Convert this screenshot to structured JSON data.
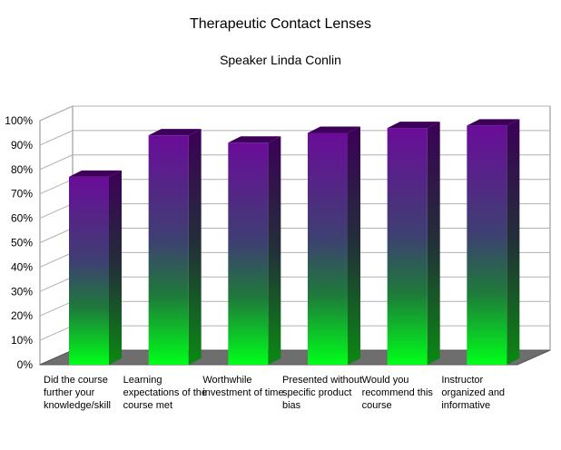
{
  "chart_data": {
    "type": "bar",
    "title": "Therapeutic Contact Lenses",
    "subtitle": "Speaker Linda Conlin",
    "categories": [
      "Did the course further your knowledge/skill",
      "Learning expectations of the course met",
      "Worthwhile investment of time",
      "Presented without specific product bias",
      "Would you recommend this course",
      "Instructor organized and informative"
    ],
    "values": [
      77,
      94,
      91,
      95,
      97,
      98
    ],
    "y_ticks": [
      "0%",
      "10%",
      "20%",
      "30%",
      "40%",
      "50%",
      "60%",
      "70%",
      "80%",
      "90%",
      "100%"
    ],
    "ylim": [
      0,
      100
    ],
    "grid": true,
    "legend": "none",
    "colors": {
      "bar_top": "#6a0c9a",
      "bar_mid": "#3a3a6a",
      "bar_bottom": "#00ff1a",
      "side_top": "#3c0058",
      "side_bottom": "#0a8a12",
      "floor": "#6e6e6e",
      "grid": "#b0b0b0"
    }
  }
}
